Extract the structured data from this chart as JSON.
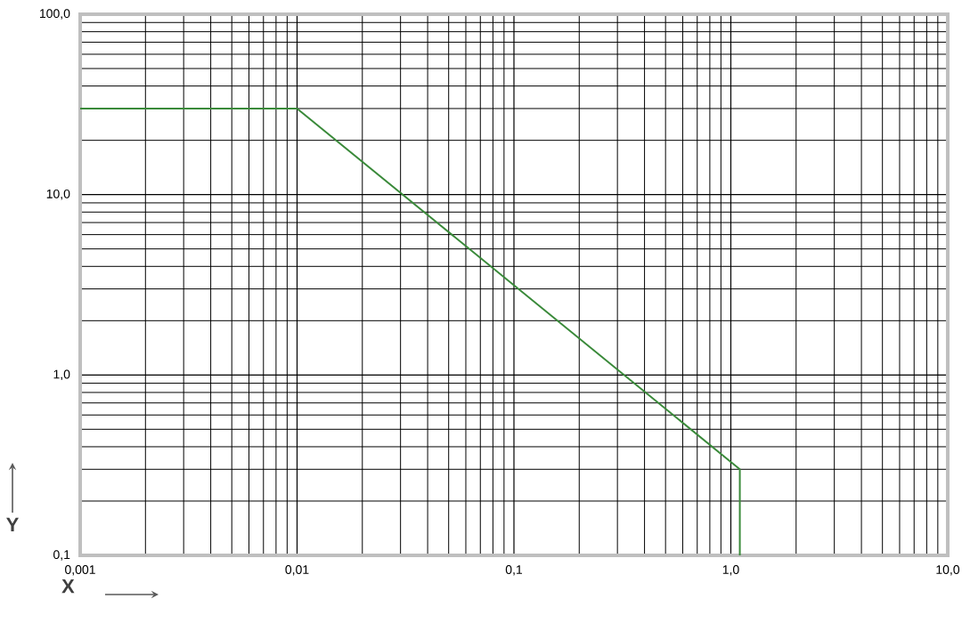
{
  "chart_data": {
    "type": "line",
    "xlabel": "X",
    "ylabel": "Y",
    "log": "xy",
    "grid": true,
    "marker": "none",
    "line_style": "solid",
    "xlim": [
      0.001,
      10
    ],
    "ylim": [
      0.1,
      100
    ],
    "xticks": [
      {
        "value": 0.001,
        "label": "0,001"
      },
      {
        "value": 0.01,
        "label": "0,01"
      },
      {
        "value": 0.1,
        "label": "0,1"
      },
      {
        "value": 1,
        "label": "1,0"
      },
      {
        "value": 10,
        "label": "10,0"
      }
    ],
    "yticks": [
      {
        "value": 0.1,
        "label": "0,1"
      },
      {
        "value": 1,
        "label": "1,0"
      },
      {
        "value": 10,
        "label": "10,0"
      },
      {
        "value": 100,
        "label": "100,0"
      }
    ],
    "series": [
      {
        "color": "#3a8a3a",
        "x": [
          0.001,
          0.01,
          1.1,
          1.1
        ],
        "values": [
          30,
          30,
          0.3,
          0.1
        ]
      }
    ]
  }
}
